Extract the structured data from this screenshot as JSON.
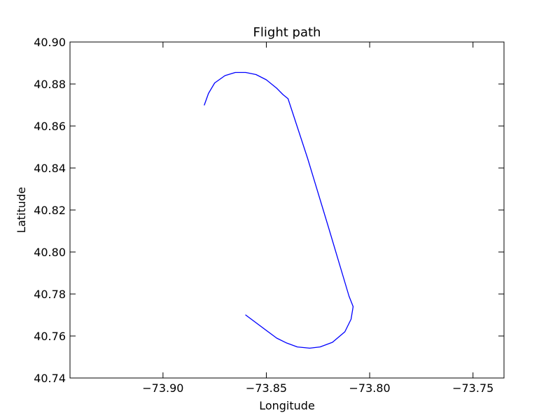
{
  "chart_data": {
    "type": "line",
    "title": "Flight path",
    "xlabel": "Longitude",
    "ylabel": "Latitude",
    "xlim": [
      -73.945,
      -73.735
    ],
    "ylim": [
      40.74,
      40.9
    ],
    "x_ticks": [
      -73.9,
      -73.85,
      -73.8,
      -73.75
    ],
    "x_tick_labels": [
      "−73.90",
      "−73.85",
      "−73.80",
      "−73.75"
    ],
    "y_ticks": [
      40.74,
      40.76,
      40.78,
      40.8,
      40.82,
      40.84,
      40.86,
      40.88,
      40.9
    ],
    "y_tick_labels": [
      "40.74",
      "40.76",
      "40.78",
      "40.80",
      "40.82",
      "40.84",
      "40.86",
      "40.88",
      "40.90"
    ],
    "grid": false,
    "line_color": "#0000ff",
    "series": [
      {
        "x": [
          -73.88,
          -73.878,
          -73.875,
          -73.87,
          -73.865,
          -73.86,
          -73.855,
          -73.85,
          -73.845,
          -73.842,
          -73.8395,
          -73.83,
          -73.82,
          -73.81,
          -73.808,
          -73.809,
          -73.812,
          -73.818,
          -73.824,
          -73.829,
          -73.835,
          -73.8405,
          -73.845,
          -73.86
        ],
        "y": [
          40.87,
          40.8755,
          40.8805,
          40.884,
          40.8855,
          40.8855,
          40.8845,
          40.882,
          40.878,
          40.875,
          40.873,
          40.8445,
          40.812,
          40.779,
          40.774,
          40.768,
          40.762,
          40.757,
          40.7548,
          40.7542,
          40.7548,
          40.7568,
          40.759,
          40.77
        ]
      }
    ]
  }
}
